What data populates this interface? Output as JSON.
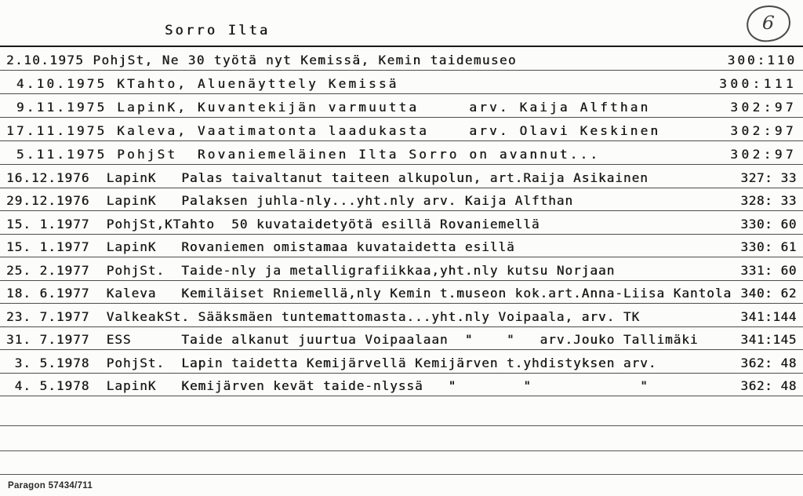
{
  "page": {
    "title": "Sorro Ilta",
    "page_number": "6",
    "footer": "Paragon 57434/711"
  },
  "rows": [
    {
      "text": "2.10.1975 PohjSt, Ne 30 työtä nyt Kemissä, Kemin taidemuseo",
      "ref": "300:110",
      "style": "med"
    },
    {
      "text": " 4.10.1975 KTahto, Aluenäyttely Kemissä",
      "ref": "300:111",
      "style": "wide"
    },
    {
      "text": " 9.11.1975 LapinK, Kuvantekijän varmuutta     arv. Kaija Alfthan",
      "ref": "302:97",
      "style": "wide"
    },
    {
      "text": "17.11.1975 Kaleva, Vaatimatonta laadukasta    arv. Olavi Keskinen",
      "ref": "302:97",
      "style": "wide"
    },
    {
      "text": " 5.11.1975 PohjSt  Rovaniemeläinen Ilta Sorro on avannut...",
      "ref": "302:97",
      "style": "wide"
    },
    {
      "text": "16.12.1976  LapinK   Palas taivaltanut taiteen alkupolun, art.Raija Asikainen",
      "ref": "327: 33",
      "style": "normal"
    },
    {
      "text": "29.12.1976  LapinK   Palaksen juhla-nly...yht.nly arv. Kaija Alfthan",
      "ref": "328: 33",
      "style": "normal"
    },
    {
      "text": "15. 1.1977  PohjSt,KTahto  50 kuvataidetyötä esillä Rovaniemellä",
      "ref": "330: 60",
      "style": "normal"
    },
    {
      "text": "15. 1.1977  LapinK   Rovaniemen omistamaa kuvataidetta esillä",
      "ref": "330: 61",
      "style": "normal"
    },
    {
      "text": "25. 2.1977  PohjSt.  Taide-nly ja metalligrafiikkaa,yht.nly kutsu Norjaan",
      "ref": "331: 60",
      "style": "normal"
    },
    {
      "text": "18. 6.1977  Kaleva   Kemiläiset Rniemellä,nly Kemin t.museon kok.art.Anna-Liisa Kantola",
      "ref": "340: 62",
      "style": "normal"
    },
    {
      "text": "23. 7.1977  ValkeakSt. Sääksmäen tuntemattomasta...yht.nly Voipaala, arv. TK",
      "ref": "341:144",
      "style": "normal"
    },
    {
      "text": "31. 7.1977  ESS      Taide alkanut juurtua Voipaalaan  \"    \"   arv.Jouko Tallimäki",
      "ref": "341:145",
      "style": "normal"
    },
    {
      "text": " 3. 5.1978  PohjSt.  Lapin taidetta Kemijärvellä Kemijärven t.yhdistyksen arv.",
      "ref": "362: 48",
      "style": "normal"
    },
    {
      "text": " 4. 5.1978  LapinK   Kemijärven kevät taide-nlyssä   \"        \"             \"",
      "ref": "362: 48",
      "style": "normal"
    }
  ]
}
